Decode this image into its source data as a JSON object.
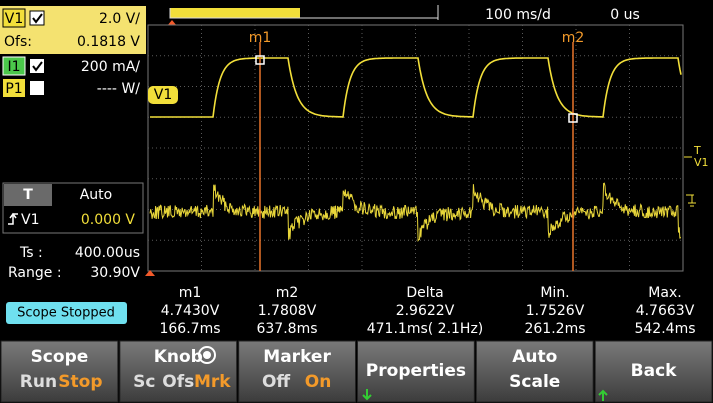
{
  "left_panel": {
    "v1": {
      "label": "V1",
      "scale": "2.0 V/"
    },
    "offset": {
      "label": "Ofs:",
      "value": "0.1818 V"
    },
    "i1": {
      "label": "I1",
      "scale": "200 mA/"
    },
    "p1": {
      "label": "P1",
      "scale": "---- W/"
    },
    "trigger": {
      "mode_label": "T",
      "mode": "Auto",
      "source": "V1",
      "level": "0.000 V"
    },
    "ts": {
      "label": "Ts :",
      "value": "400.00us"
    },
    "range": {
      "label": "Range :",
      "value": "30.90V"
    },
    "status": "Scope Stopped"
  },
  "top_bar": {
    "time_div": "100 ms/d",
    "delay": "0 us"
  },
  "plot": {
    "trace_label": "V1",
    "markers": [
      "m1",
      "m2"
    ],
    "right_labels": {
      "trigger": "T",
      "channel": "V1"
    }
  },
  "measurements": {
    "headers": [
      "m1",
      "m2",
      "Delta",
      "Min.",
      "Max."
    ],
    "rows": [
      [
        "4.7430V",
        "1.7808V",
        "2.9622V",
        "1.7526V",
        "4.7663V"
      ],
      [
        "166.7ms",
        "637.8ms",
        "471.1ms( 2.1Hz)",
        "261.2ms",
        "542.4ms"
      ]
    ]
  },
  "softkeys": [
    {
      "title": "Scope",
      "options": [
        "Run",
        "Stop"
      ]
    },
    {
      "title": "Knob",
      "options": [
        "Sc",
        "Ofs",
        "Mrk"
      ]
    },
    {
      "title": "Marker",
      "options": [
        "Off",
        "On"
      ]
    },
    {
      "title": "Properties"
    },
    {
      "title": [
        "Auto",
        "Scale"
      ]
    },
    {
      "title": "Back"
    }
  ]
}
